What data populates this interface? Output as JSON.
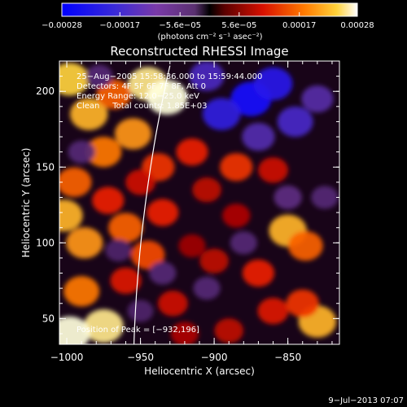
{
  "chart_data": {
    "type": "heatmap",
    "title": "Reconstructed RHESSI Image",
    "xlabel": "Heliocentric X (arcsec)",
    "ylabel": "Heliocentric Y (arcsec)",
    "xlim": [
      -1005,
      -815
    ],
    "ylim": [
      33,
      220
    ],
    "x_ticks": [
      -1000,
      -950,
      -900,
      -850
    ],
    "x_tick_labels": [
      "−1000",
      "−950",
      "−900",
      "−850"
    ],
    "y_ticks": [
      50,
      100,
      150,
      200
    ],
    "y_tick_labels": [
      "50",
      "100",
      "150",
      "200"
    ],
    "colorbar": {
      "range": [
        -0.00028,
        0.00028
      ],
      "tick_values": [
        -0.00028,
        -0.00017,
        -5.6e-05,
        5.6e-05,
        0.00017,
        0.00028
      ],
      "tick_labels": [
        "−0.00028",
        "−0.00017",
        "−5.6e−05",
        "5.6e−05",
        "0.00017",
        "0.00028"
      ],
      "unit_label": "(photons cm⁻² s⁻¹ asec⁻²)"
    },
    "annotations": [
      "25−Aug−2005 15:58:36.000 to 15:59:44.000",
      "Detectors: 4F 5F 6F 7F 8F, Att 0",
      "Energy Range: 12.0−25.0 keV",
      "Clean     Total counts: 1.85E+03"
    ],
    "peak_label": "Position of Peak = [−932,196]",
    "timestamp": "9−Jul−2013 07:07",
    "blobs": [
      {
        "x": -998,
        "y": 208,
        "v": 0.9
      },
      {
        "x": -985,
        "y": 185,
        "v": 0.85
      },
      {
        "x": -968,
        "y": 198,
        "v": 0.7
      },
      {
        "x": -955,
        "y": 172,
        "v": 0.8
      },
      {
        "x": -975,
        "y": 160,
        "v": 0.75
      },
      {
        "x": -945,
        "y": 205,
        "v": 0.95
      },
      {
        "x": -932,
        "y": 196,
        "v": 1.0
      },
      {
        "x": -938,
        "y": 150,
        "v": 0.6
      },
      {
        "x": -995,
        "y": 140,
        "v": 0.7
      },
      {
        "x": -1002,
        "y": 118,
        "v": 0.85
      },
      {
        "x": -988,
        "y": 100,
        "v": 0.8
      },
      {
        "x": -972,
        "y": 128,
        "v": 0.55
      },
      {
        "x": -960,
        "y": 110,
        "v": 0.7
      },
      {
        "x": -990,
        "y": 68,
        "v": 0.75
      },
      {
        "x": -975,
        "y": 45,
        "v": 0.95
      },
      {
        "x": -998,
        "y": 40,
        "v": 1.0
      },
      {
        "x": -960,
        "y": 75,
        "v": 0.5
      },
      {
        "x": -945,
        "y": 92,
        "v": 0.65
      },
      {
        "x": -935,
        "y": 120,
        "v": 0.55
      },
      {
        "x": -928,
        "y": 60,
        "v": 0.45
      },
      {
        "x": -915,
        "y": 160,
        "v": 0.55
      },
      {
        "x": -905,
        "y": 135,
        "v": 0.4
      },
      {
        "x": -885,
        "y": 150,
        "v": 0.6
      },
      {
        "x": -860,
        "y": 148,
        "v": 0.45
      },
      {
        "x": -850,
        "y": 108,
        "v": 0.85
      },
      {
        "x": -838,
        "y": 98,
        "v": 0.7
      },
      {
        "x": -870,
        "y": 80,
        "v": 0.55
      },
      {
        "x": -885,
        "y": 118,
        "v": 0.35
      },
      {
        "x": -900,
        "y": 88,
        "v": 0.4
      },
      {
        "x": -860,
        "y": 55,
        "v": 0.5
      },
      {
        "x": -830,
        "y": 48,
        "v": 0.85
      },
      {
        "x": -840,
        "y": 60,
        "v": 0.6
      },
      {
        "x": -890,
        "y": 42,
        "v": 0.4
      },
      {
        "x": -920,
        "y": 40,
        "v": 0.35
      },
      {
        "x": -915,
        "y": 98,
        "v": 0.3
      },
      {
        "x": -950,
        "y": 140,
        "v": 0.45
      },
      {
        "x": -875,
        "y": 195,
        "v": -1.0
      },
      {
        "x": -860,
        "y": 205,
        "v": -0.9
      },
      {
        "x": -895,
        "y": 185,
        "v": -0.85
      },
      {
        "x": -845,
        "y": 180,
        "v": -0.75
      },
      {
        "x": -870,
        "y": 170,
        "v": -0.6
      },
      {
        "x": -905,
        "y": 210,
        "v": -0.7
      },
      {
        "x": -830,
        "y": 195,
        "v": -0.55
      },
      {
        "x": -850,
        "y": 130,
        "v": -0.35
      },
      {
        "x": -825,
        "y": 130,
        "v": -0.3
      },
      {
        "x": -880,
        "y": 100,
        "v": -0.3
      },
      {
        "x": -905,
        "y": 70,
        "v": -0.3
      },
      {
        "x": -935,
        "y": 80,
        "v": -0.3
      },
      {
        "x": -965,
        "y": 95,
        "v": -0.25
      },
      {
        "x": -990,
        "y": 160,
        "v": -0.3
      },
      {
        "x": -978,
        "y": 210,
        "v": -0.3
      },
      {
        "x": -950,
        "y": 55,
        "v": -0.25
      }
    ]
  }
}
